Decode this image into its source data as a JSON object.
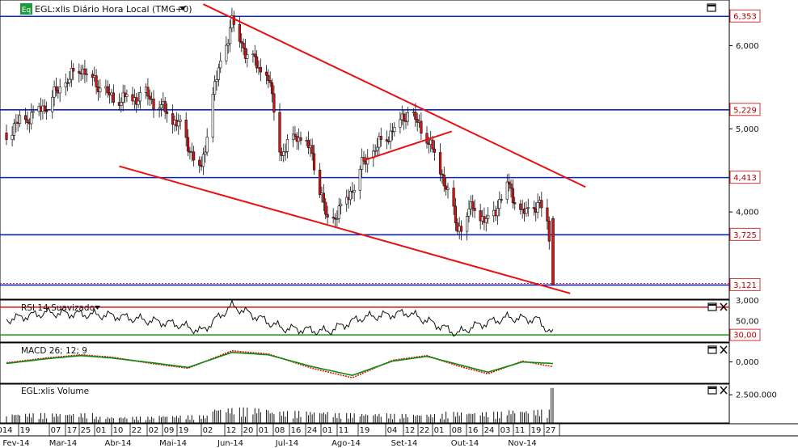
{
  "panels": {
    "price": {
      "title": "EGL:xlis Diário Hora Local (TMG+0)",
      "badge": "Eq",
      "ylim": [
        2.95,
        6.55
      ],
      "ticks": [
        {
          "v": 6.0,
          "label": "6,000"
        },
        {
          "v": 5.0,
          "label": "5,000"
        },
        {
          "v": 4.0,
          "label": "4,000"
        }
      ],
      "hlines": [
        {
          "v": 6.353,
          "label": "6,353",
          "color": "#0b24c9"
        },
        {
          "v": 5.229,
          "label": "5,229",
          "color": "#0b24c9"
        },
        {
          "v": 4.413,
          "label": "4,413",
          "color": "#0b24c9"
        },
        {
          "v": 3.725,
          "label": "3,725",
          "color": "#0b24c9"
        },
        {
          "v": 3.121,
          "label": "3,121",
          "color": "#0b24c9"
        }
      ]
    },
    "rsi": {
      "title": "RSI 14 Suavizado",
      "ylim": [
        22,
        78
      ],
      "top_label": "3,000",
      "ticks": [
        {
          "v": 50,
          "label": "50,00"
        }
      ],
      "levels": [
        {
          "v": 70,
          "color": "#e01010"
        },
        {
          "v": 30,
          "label": "30,00",
          "color": "#119911"
        }
      ]
    },
    "macd": {
      "title": "MACD 26; 12; 9",
      "ylim": [
        -0.25,
        0.22
      ],
      "ticks": [
        {
          "v": 0,
          "label": "0,000"
        }
      ]
    },
    "volume": {
      "title": "EGL:xlis Volume",
      "ylim": [
        0,
        3300000
      ],
      "ticks": [
        {
          "v": 2500000,
          "label": "2.500.000"
        }
      ]
    }
  },
  "x_axis": {
    "day_labels": [
      "014",
      "19",
      "07",
      "17",
      "25",
      "01",
      "10",
      "22",
      "02",
      "09",
      "19",
      "02",
      "12",
      "20",
      "01",
      "08",
      "16",
      "24",
      "01",
      "11",
      "19",
      "04",
      "12",
      "22",
      "01",
      "08",
      "16",
      "24",
      "03",
      "11",
      "19",
      "27"
    ],
    "month_labels": [
      "Fev-14",
      "Mar-14",
      "Abr-14",
      "Mai-14",
      "Jun-14",
      "Jul-14",
      "Ago-14",
      "Set-14",
      "Out-14",
      "Nov-14"
    ]
  },
  "chart_data": [
    {
      "type": "candlestick",
      "title": "EGL:xlis Diário Hora Local (TMG+0)",
      "x": [
        "2014-02-14",
        "2014-03-07",
        "2014-03-25",
        "2014-04-10",
        "2014-04-29",
        "2014-05-15",
        "2014-05-27",
        "2014-06-02",
        "2014-06-12",
        "2014-06-20",
        "2014-07-01",
        "2014-07-08",
        "2014-07-16",
        "2014-07-24",
        "2014-08-01",
        "2014-08-11",
        "2014-08-19",
        "2014-09-04",
        "2014-09-12",
        "2014-09-22",
        "2014-10-01",
        "2014-10-08",
        "2014-10-16",
        "2014-10-24",
        "2014-11-03",
        "2014-11-11",
        "2014-11-19",
        "2014-11-24",
        "2014-11-27"
      ],
      "close": [
        4.95,
        5.3,
        5.75,
        5.35,
        5.4,
        5.05,
        4.5,
        5.4,
        6.3,
        5.9,
        5.6,
        4.7,
        4.95,
        4.7,
        3.85,
        4.15,
        4.55,
        5.0,
        5.2,
        4.9,
        4.4,
        3.8,
        4.05,
        3.85,
        4.35,
        3.95,
        4.1,
        3.95,
        3.121
      ],
      "ylim": [
        2.95,
        6.55
      ],
      "horizontal_levels": [
        6.353,
        5.229,
        4.413,
        3.725,
        3.121
      ],
      "trendlines": [
        {
          "from": [
            "2014-05-28",
            6.5
          ],
          "to": [
            "2014-12-14",
            4.3
          ],
          "color": "#e81010"
        },
        {
          "from": [
            "2014-04-14",
            4.55
          ],
          "to": [
            "2014-12-06",
            3.02
          ],
          "color": "#e81010"
        },
        {
          "from": [
            "2014-08-20",
            4.62
          ],
          "to": [
            "2014-10-05",
            4.97
          ],
          "color": "#e81010"
        }
      ]
    },
    {
      "type": "line",
      "title": "RSI 14 Suavizado",
      "x": [
        "2014-02-14",
        "2014-03-07",
        "2014-04-10",
        "2014-05-15",
        "2014-05-27",
        "2014-06-12",
        "2014-07-08",
        "2014-08-01",
        "2014-08-19",
        "2014-09-12",
        "2014-10-08",
        "2014-10-16",
        "2014-11-03",
        "2014-11-19",
        "2014-11-27"
      ],
      "values": [
        52,
        62,
        58,
        45,
        35,
        72,
        40,
        35,
        55,
        62,
        32,
        42,
        55,
        52,
        30
      ],
      "levels": [
        70,
        30
      ],
      "ylim": [
        22,
        78
      ]
    },
    {
      "type": "line",
      "title": "MACD 26; 12; 9",
      "x": [
        "2014-02-14",
        "2014-03-07",
        "2014-03-25",
        "2014-04-10",
        "2014-05-01",
        "2014-05-20",
        "2014-06-12",
        "2014-07-01",
        "2014-07-24",
        "2014-08-14",
        "2014-09-04",
        "2014-09-22",
        "2014-10-08",
        "2014-10-24",
        "2014-11-11",
        "2014-11-27"
      ],
      "series": [
        {
          "color": "#e01010",
          "values": [
            -0.01,
            0.05,
            0.09,
            0.06,
            -0.02,
            -0.08,
            0.14,
            0.1,
            -0.08,
            -0.2,
            0.02,
            0.08,
            -0.05,
            -0.15,
            0.01,
            -0.06
          ]
        },
        {
          "color": "#0a8a0a",
          "values": [
            -0.02,
            0.04,
            0.08,
            0.05,
            -0.01,
            -0.07,
            0.12,
            0.09,
            -0.06,
            -0.17,
            0.01,
            0.07,
            -0.03,
            -0.13,
            0.0,
            -0.02
          ]
        }
      ],
      "ylim": [
        -0.25,
        0.22
      ]
    },
    {
      "type": "bar",
      "title": "EGL:xlis Volume",
      "x": [
        "2014-03-01",
        "2014-04-01",
        "2014-05-01",
        "2014-06-01",
        "2014-07-01",
        "2014-08-01",
        "2014-09-01",
        "2014-10-01",
        "2014-11-01",
        "2014-11-27"
      ],
      "values": [
        700000,
        450000,
        550000,
        1100000,
        850000,
        700000,
        650000,
        800000,
        950000,
        3100000
      ],
      "ylim": [
        0,
        3300000
      ]
    }
  ]
}
